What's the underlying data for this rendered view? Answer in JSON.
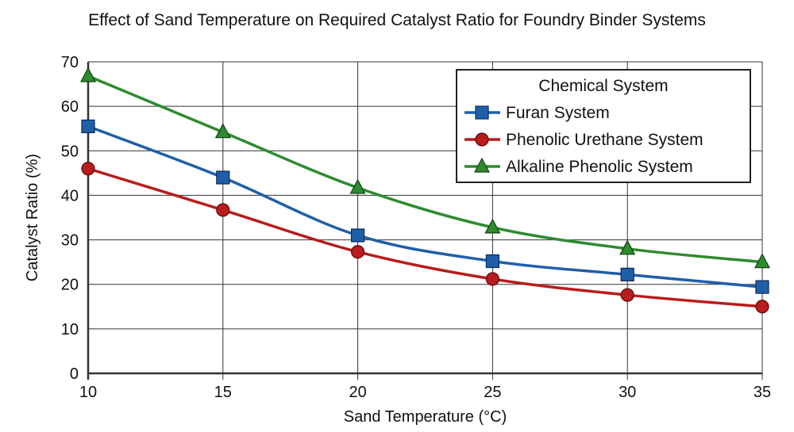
{
  "chart_data": {
    "type": "line",
    "title": "Effect of Sand Temperature on Required Catalyst Ratio for Foundry Binder Systems",
    "xlabel": "Sand Temperature (°C)",
    "ylabel": "Catalyst Ratio (%)",
    "xlim": [
      10,
      35
    ],
    "ylim": [
      0,
      70
    ],
    "xticks": [
      10,
      15,
      20,
      25,
      30,
      35
    ],
    "yticks": [
      0,
      10,
      20,
      30,
      40,
      50,
      60,
      70
    ],
    "grid": true,
    "smooth": true,
    "legend_title": "Chemical System",
    "legend_position": "top-right",
    "x": [
      10,
      15,
      20,
      25,
      30,
      35
    ],
    "series": [
      {
        "name": "Furan System",
        "color": "#1f5fa8",
        "marker": "square",
        "values": [
          55.5,
          44,
          31,
          25.2,
          22.2,
          19.4
        ]
      },
      {
        "name": "Phenolic Urethane System",
        "color": "#b81c1c",
        "marker": "circle",
        "values": [
          46,
          36.7,
          27.3,
          21.2,
          17.6,
          15
        ]
      },
      {
        "name": "Alkaline Phenolic System",
        "color": "#2e8b2e",
        "marker": "triangle",
        "values": [
          66.8,
          54.2,
          41.7,
          32.8,
          28,
          25
        ]
      }
    ]
  }
}
